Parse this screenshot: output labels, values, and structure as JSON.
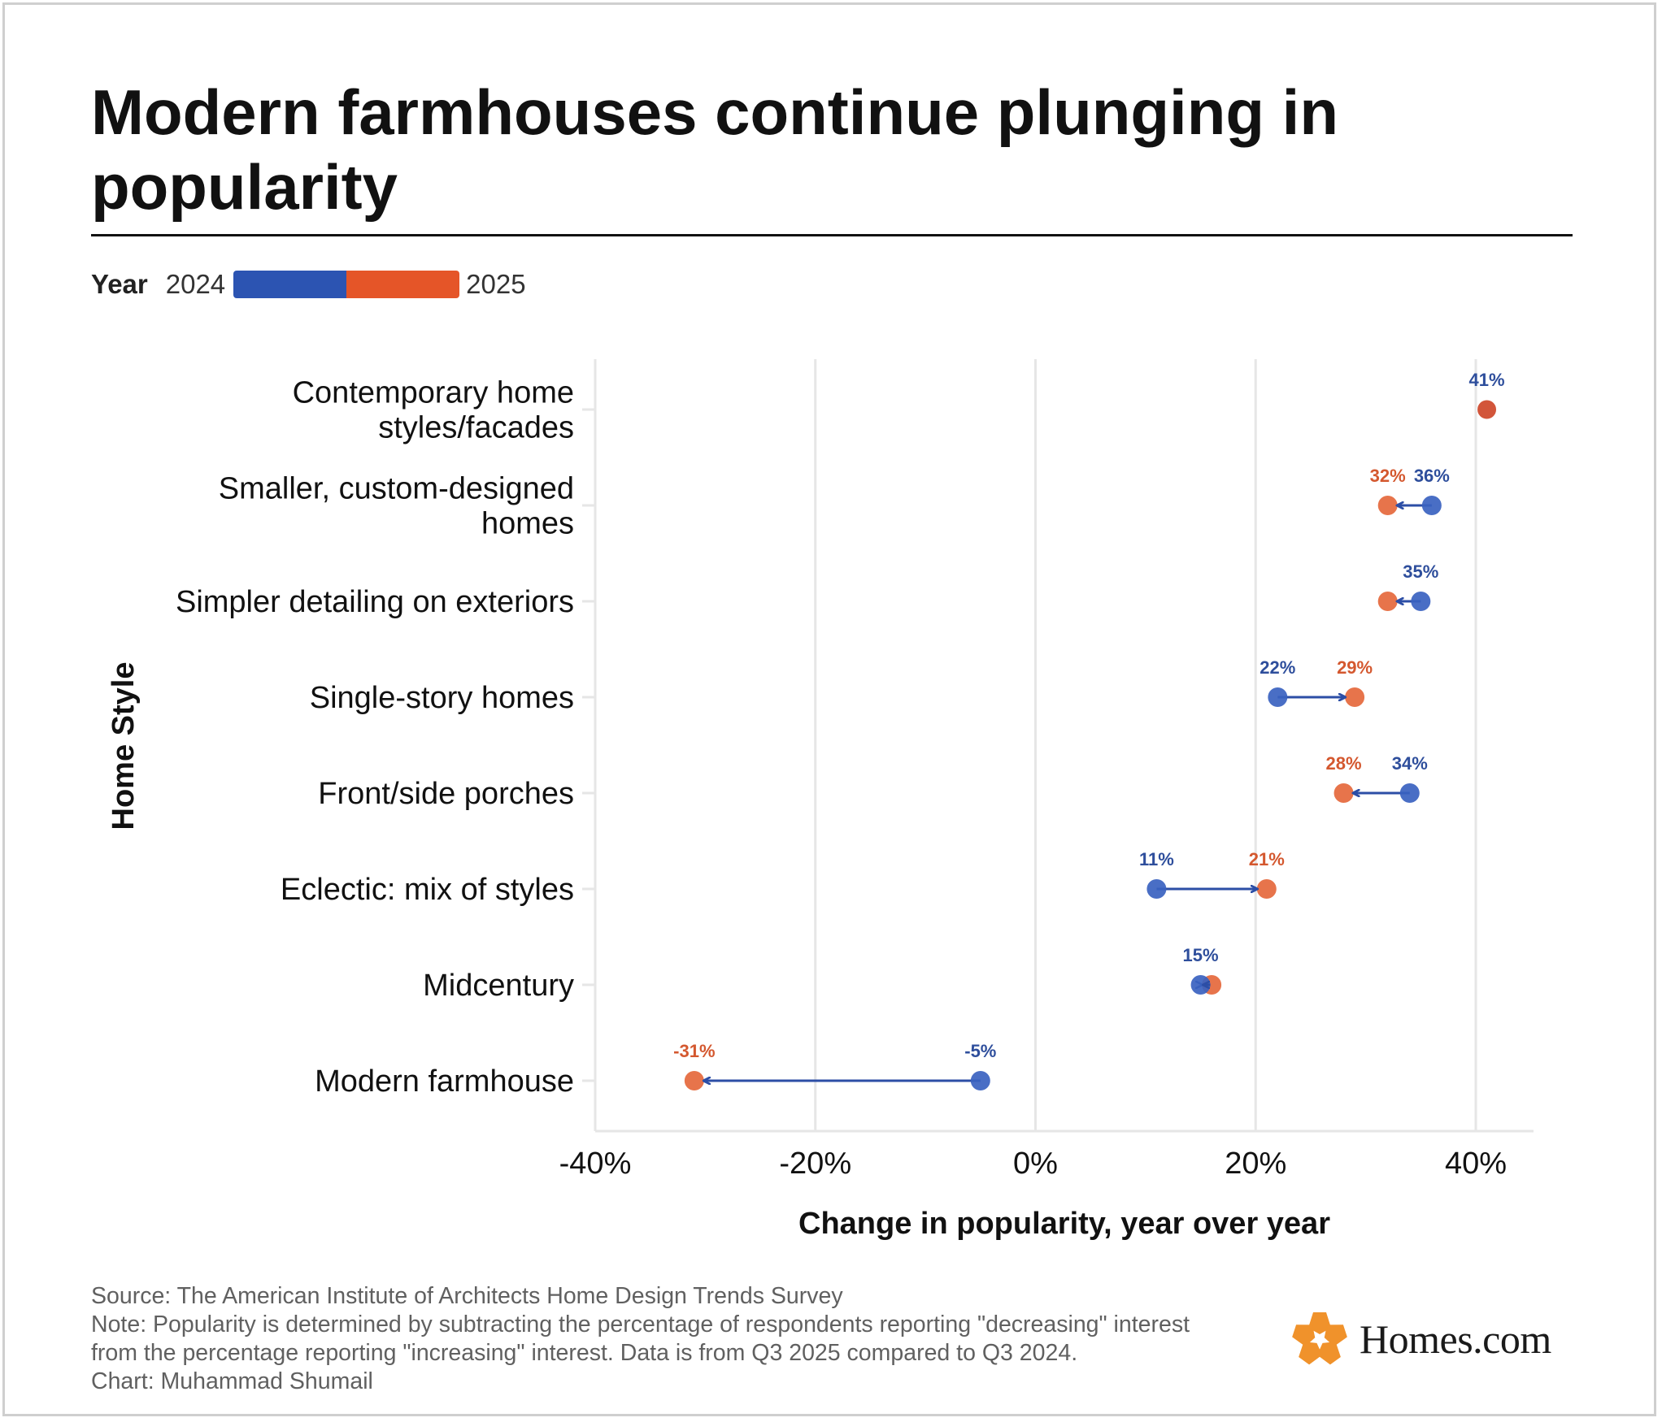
{
  "title": "Modern farmhouses continue plunging in popularity",
  "legend": {
    "title": "Year",
    "start_label": "2024",
    "end_label": "2025"
  },
  "colors": {
    "y2024": "#3a62c0",
    "y2025": "#e5683c",
    "arrow": "#2c4ea6",
    "single": "#d2553a"
  },
  "chart_data": {
    "type": "dumbbell",
    "ylabel": "Home Style",
    "xlabel": "Change in popularity, year over year",
    "xlim": [
      -40,
      45
    ],
    "xticks": [
      -40,
      -20,
      0,
      20,
      40
    ],
    "xtick_labels": [
      "-40%",
      "-20%",
      "0%",
      "20%",
      "40%"
    ],
    "grid": "vertical",
    "legend_position": "top-left",
    "series": [
      {
        "name": "2024"
      },
      {
        "name": "2025"
      }
    ],
    "categories": [
      {
        "label_lines": [
          "Contemporary home",
          "styles/facades"
        ],
        "v2024": 41,
        "v2025": 41,
        "label2024": "41%",
        "label2025": ""
      },
      {
        "label_lines": [
          "Smaller, custom-designed",
          "homes"
        ],
        "v2024": 36,
        "v2025": 32,
        "label2024": "36%",
        "label2025": "32%"
      },
      {
        "label_lines": [
          "Simpler detailing on exteriors"
        ],
        "v2024": 35,
        "v2025": 32,
        "label2024": "35%",
        "label2025": ""
      },
      {
        "label_lines": [
          "Single-story homes"
        ],
        "v2024": 22,
        "v2025": 29,
        "label2024": "22%",
        "label2025": "29%"
      },
      {
        "label_lines": [
          "Front/side porches"
        ],
        "v2024": 34,
        "v2025": 28,
        "label2024": "34%",
        "label2025": "28%"
      },
      {
        "label_lines": [
          "Eclectic: mix of styles"
        ],
        "v2024": 11,
        "v2025": 21,
        "label2024": "11%",
        "label2025": "21%"
      },
      {
        "label_lines": [
          "Midcentury"
        ],
        "v2024": 15,
        "v2025": 16,
        "label2024": "15%",
        "label2025": ""
      },
      {
        "label_lines": [
          "Modern farmhouse"
        ],
        "v2024": -5,
        "v2025": -31,
        "label2024": "-5%",
        "label2025": "-31%"
      }
    ]
  },
  "footer": {
    "source": "Source: The American Institute of Architects Home Design Trends Survey",
    "note_line1": "Note: Popularity is determined by subtracting the percentage of respondents reporting \"decreasing\" interest",
    "note_line2": "from the percentage reporting \"increasing\" interest. Data is from Q3 2025 compared to Q3 2024.",
    "credit": "Chart: Muhammad Shumail"
  },
  "logo": {
    "text": "Homes.com",
    "icon": "homes-com-star-icon"
  }
}
